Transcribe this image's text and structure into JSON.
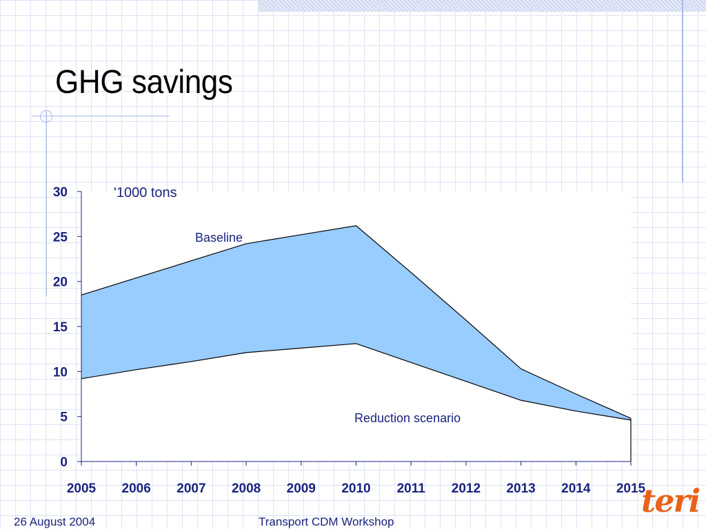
{
  "slide": {
    "title": "GHG savings",
    "footer_date": "26 August 2004",
    "footer_title": "Transport CDM Workshop",
    "logo_text": "teri",
    "accent_color": "#a9b8e6",
    "logo_color": "#e8621a"
  },
  "chart_data": {
    "type": "area",
    "title": "",
    "ylabel": "'1000 tons",
    "xlabel": "",
    "x": [
      2005,
      2006,
      2007,
      2008,
      2009,
      2010,
      2011,
      2012,
      2013,
      2014,
      2015
    ],
    "ylim": [
      0,
      30
    ],
    "yticks": [
      0,
      5,
      10,
      15,
      20,
      25,
      30
    ],
    "series": [
      {
        "name": "Baseline",
        "values": [
          18.5,
          20.4,
          22.3,
          24.2,
          25.2,
          26.2,
          21.0,
          15.7,
          10.3,
          7.5,
          4.8
        ]
      },
      {
        "name": "Reduction scenario",
        "values": [
          9.2,
          10.2,
          11.1,
          12.1,
          12.6,
          13.1,
          11.0,
          8.9,
          6.8,
          5.6,
          4.6
        ]
      }
    ],
    "fill_color": "#99ccff",
    "line_color": "#000000",
    "grid": false
  }
}
